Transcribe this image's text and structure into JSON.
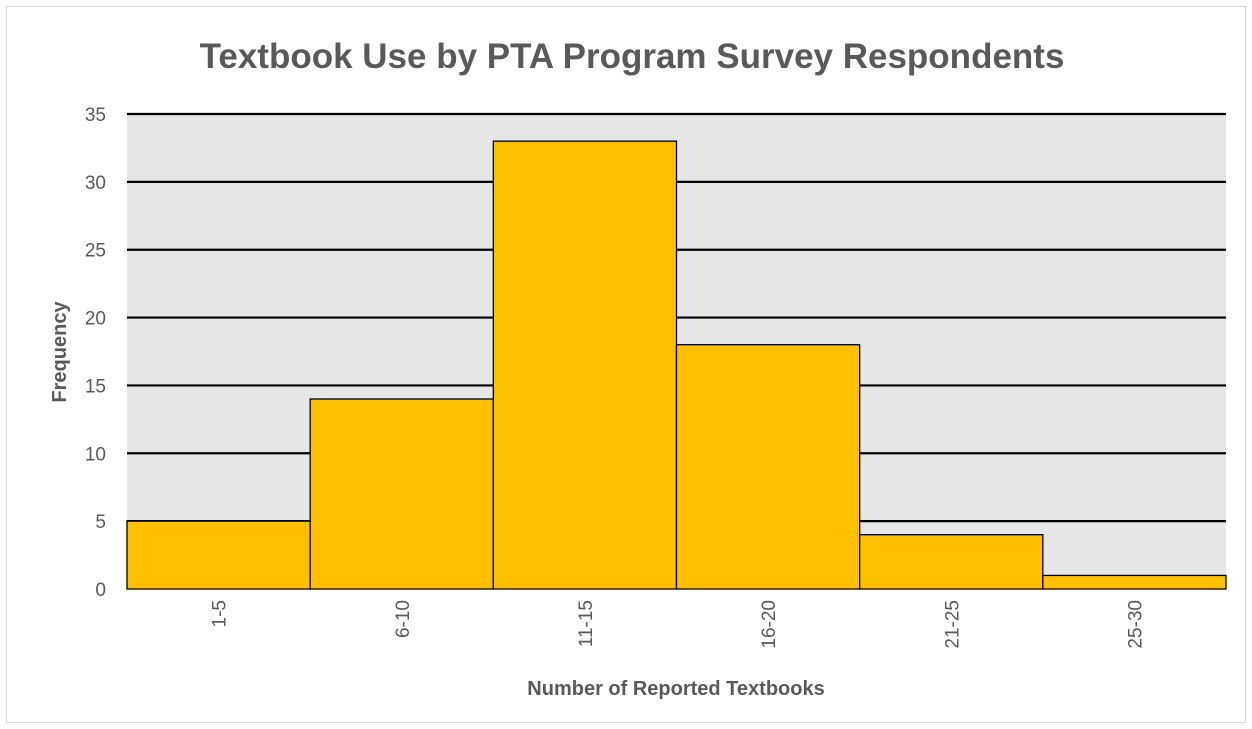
{
  "chart_data": {
    "type": "bar",
    "title": "Textbook Use by PTA Program Survey Respondents",
    "xlabel": "Number of Reported Textbooks",
    "ylabel": "Frequency",
    "categories": [
      "1-5",
      "6-10",
      "11-15",
      "16-20",
      "21-25",
      "25-30"
    ],
    "values": [
      5,
      14,
      33,
      18,
      4,
      1
    ],
    "ylim": [
      0,
      35
    ],
    "yticks": [
      0,
      5,
      10,
      15,
      20,
      25,
      30,
      35
    ],
    "grid": true,
    "legend": "none",
    "bar_gap": 0,
    "colors": {
      "bar_fill": "#FFC000",
      "bar_stroke": "#000000",
      "plot_background": "#E7E6E6",
      "gridline": "#000000",
      "text": "#595959"
    }
  }
}
